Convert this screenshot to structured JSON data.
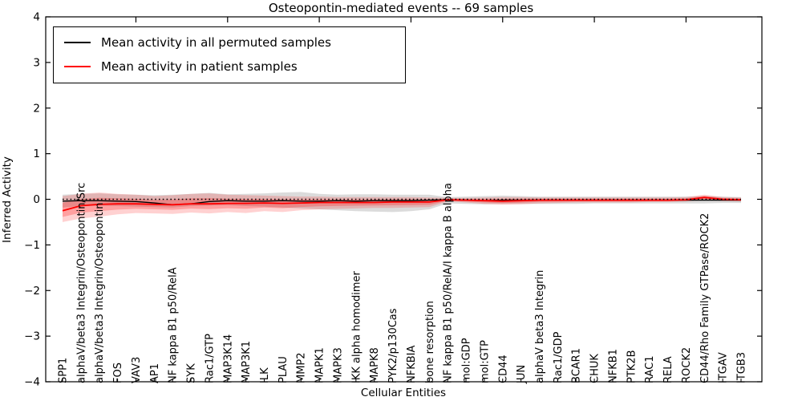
{
  "title": "Osteopontin-mediated events -- 69 samples",
  "legend": {
    "items": [
      {
        "label": "Mean activity in all permuted samples",
        "color": "#000000"
      },
      {
        "label": "Mean activity in patient samples",
        "color": "#ff0000"
      }
    ]
  },
  "chart_data": {
    "type": "line",
    "title": "Osteopontin-mediated events -- 69 samples",
    "xlabel": "Cellular Entities",
    "ylabel": "Inferred Activity",
    "ylim": [
      -4,
      4
    ],
    "yticks": [
      -4,
      -3,
      -2,
      -1,
      0,
      1,
      2,
      3,
      4
    ],
    "grid": false,
    "legend_position": "upper left",
    "x_tick_label_rotation": 90,
    "categories": [
      "SPP1",
      "alphaV/beta3 Integrin/Osteopontin/Src",
      "alphaV/beta3 Integrin/Osteopontin",
      "FOS",
      "VAV3",
      "AP1",
      "NF kappa B1 p50/RelA",
      "SYK",
      "Rac1/GTP",
      "MAP3K14",
      "MAP3K1",
      "ILK",
      "PLAU",
      "MMP2",
      "MAPK1",
      "MAPK3",
      "IKK alpha homodimer",
      "MAPK8",
      "PYK2/p130Cas",
      "NFKBIA",
      "bone resorption",
      "NF kappa B1 p50/RelA/I kappa B alpha",
      "mol:GDP",
      "mol:GTP",
      "CD44",
      "JUN",
      "alphaV beta3 Integrin",
      "Rac1/GDP",
      "BCAR1",
      "CHUK",
      "NFKB1",
      "PTK2B",
      "RAC1",
      "RELA",
      "ROCK2",
      "CD44/Rho Family GTPase/ROCK2",
      "ITGAV",
      "ITGB3"
    ],
    "series": [
      {
        "name": "Mean activity in all permuted samples",
        "color": "#000000",
        "values": [
          -0.04,
          -0.03,
          -0.03,
          -0.04,
          -0.05,
          -0.08,
          -0.12,
          -0.1,
          -0.05,
          -0.03,
          -0.04,
          -0.04,
          -0.03,
          -0.04,
          -0.04,
          -0.03,
          -0.04,
          -0.03,
          -0.03,
          -0.03,
          -0.02,
          -0.01,
          -0.02,
          -0.03,
          -0.02,
          -0.02,
          -0.02,
          -0.02,
          -0.02,
          -0.02,
          -0.02,
          -0.02,
          -0.02,
          -0.02,
          -0.02,
          -0.02,
          -0.02,
          -0.02
        ]
      },
      {
        "name": "Mean activity in patient samples",
        "color": "#ff0000",
        "values": [
          -0.25,
          -0.14,
          -0.11,
          -0.1,
          -0.1,
          -0.11,
          -0.12,
          -0.1,
          -0.1,
          -0.09,
          -0.09,
          -0.08,
          -0.09,
          -0.08,
          -0.07,
          -0.07,
          -0.07,
          -0.07,
          -0.06,
          -0.06,
          -0.06,
          -0.01,
          -0.02,
          -0.03,
          -0.04,
          -0.03,
          -0.02,
          -0.02,
          -0.02,
          -0.02,
          -0.02,
          -0.02,
          -0.02,
          -0.02,
          -0.01,
          0.04,
          0.0,
          -0.01
        ]
      }
    ],
    "bands": [
      {
        "name": "permuted samples range",
        "color": "#999999",
        "opacity": 0.35,
        "lo": [
          -0.18,
          -0.15,
          -0.14,
          -0.15,
          -0.16,
          -0.17,
          -0.18,
          -0.15,
          -0.14,
          -0.13,
          -0.15,
          -0.16,
          -0.18,
          -0.2,
          -0.22,
          -0.24,
          -0.26,
          -0.27,
          -0.28,
          -0.26,
          -0.22,
          -0.09,
          -0.1,
          -0.11,
          -0.1,
          -0.1,
          -0.1,
          -0.1,
          -0.1,
          -0.09,
          -0.09,
          -0.09,
          -0.09,
          -0.09,
          -0.09,
          -0.09,
          -0.08,
          -0.08
        ],
        "hi": [
          0.1,
          0.12,
          0.13,
          0.11,
          0.1,
          0.09,
          0.1,
          0.12,
          0.14,
          0.11,
          0.12,
          0.13,
          0.15,
          0.16,
          0.12,
          0.1,
          0.11,
          0.11,
          0.1,
          0.1,
          0.1,
          0.05,
          0.06,
          0.07,
          0.08,
          0.07,
          0.06,
          0.06,
          0.06,
          0.06,
          0.06,
          0.06,
          0.06,
          0.06,
          0.06,
          0.07,
          0.06,
          0.05
        ],
        "inner_fraction": null
      },
      {
        "name": "patient samples range",
        "color": "#ff0000",
        "opacity": 0.18,
        "lo": [
          -0.5,
          -0.42,
          -0.38,
          -0.33,
          -0.3,
          -0.31,
          -0.32,
          -0.29,
          -0.31,
          -0.28,
          -0.3,
          -0.26,
          -0.28,
          -0.24,
          -0.22,
          -0.21,
          -0.2,
          -0.19,
          -0.19,
          -0.18,
          -0.17,
          -0.05,
          -0.07,
          -0.1,
          -0.12,
          -0.11,
          -0.09,
          -0.08,
          -0.07,
          -0.07,
          -0.07,
          -0.07,
          -0.06,
          -0.06,
          -0.05,
          -0.02,
          -0.04,
          -0.05
        ],
        "hi": [
          0.07,
          0.12,
          0.15,
          0.12,
          0.1,
          0.07,
          0.09,
          0.12,
          0.13,
          0.1,
          0.09,
          0.08,
          0.07,
          0.06,
          0.06,
          0.05,
          0.05,
          0.05,
          0.05,
          0.05,
          0.04,
          0.03,
          0.03,
          0.04,
          0.05,
          0.05,
          0.04,
          0.04,
          0.04,
          0.04,
          0.04,
          0.04,
          0.04,
          0.04,
          0.05,
          0.1,
          0.05,
          0.04
        ],
        "inner_fraction": 0.55
      }
    ],
    "zero_line": {
      "value": 0,
      "style": "dotted",
      "color": "#000000"
    }
  }
}
